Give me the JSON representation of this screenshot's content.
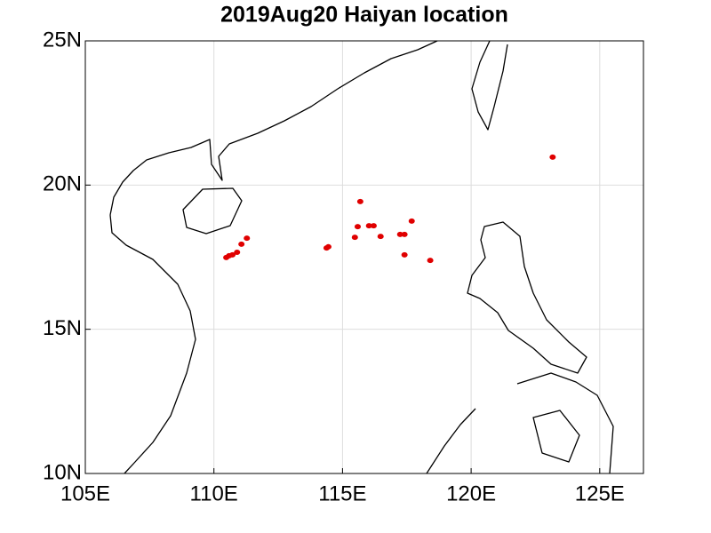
{
  "chart_data": {
    "type": "scatter",
    "title": "2019Aug20 Haiyan location",
    "x": [
      110.48,
      110.59,
      110.72,
      110.9,
      111.07,
      111.28,
      114.38,
      114.45,
      115.48,
      115.59,
      116.03,
      116.21,
      115.69,
      116.48,
      117.24,
      117.41,
      117.41,
      117.69,
      118.41,
      123.17
    ],
    "values": [
      17.49,
      17.55,
      17.58,
      17.67,
      17.95,
      18.16,
      17.82,
      17.86,
      18.19,
      18.56,
      18.59,
      18.59,
      19.43,
      18.22,
      18.29,
      18.29,
      17.58,
      18.75,
      17.39,
      20.97
    ],
    "color": "#e00000",
    "xlim": [
      105,
      126.7
    ],
    "ylim": [
      10,
      25
    ],
    "xticks": [
      {
        "value": 105,
        "label": "105E"
      },
      {
        "value": 110,
        "label": "110E"
      },
      {
        "value": 115,
        "label": "115E"
      },
      {
        "value": 120,
        "label": "120E"
      },
      {
        "value": 125,
        "label": "125E"
      }
    ],
    "yticks": [
      {
        "value": 10,
        "label": "10N"
      },
      {
        "value": 15,
        "label": "15N"
      },
      {
        "value": 20,
        "label": "20N"
      },
      {
        "value": 25,
        "label": "25N"
      }
    ],
    "grid": true
  }
}
